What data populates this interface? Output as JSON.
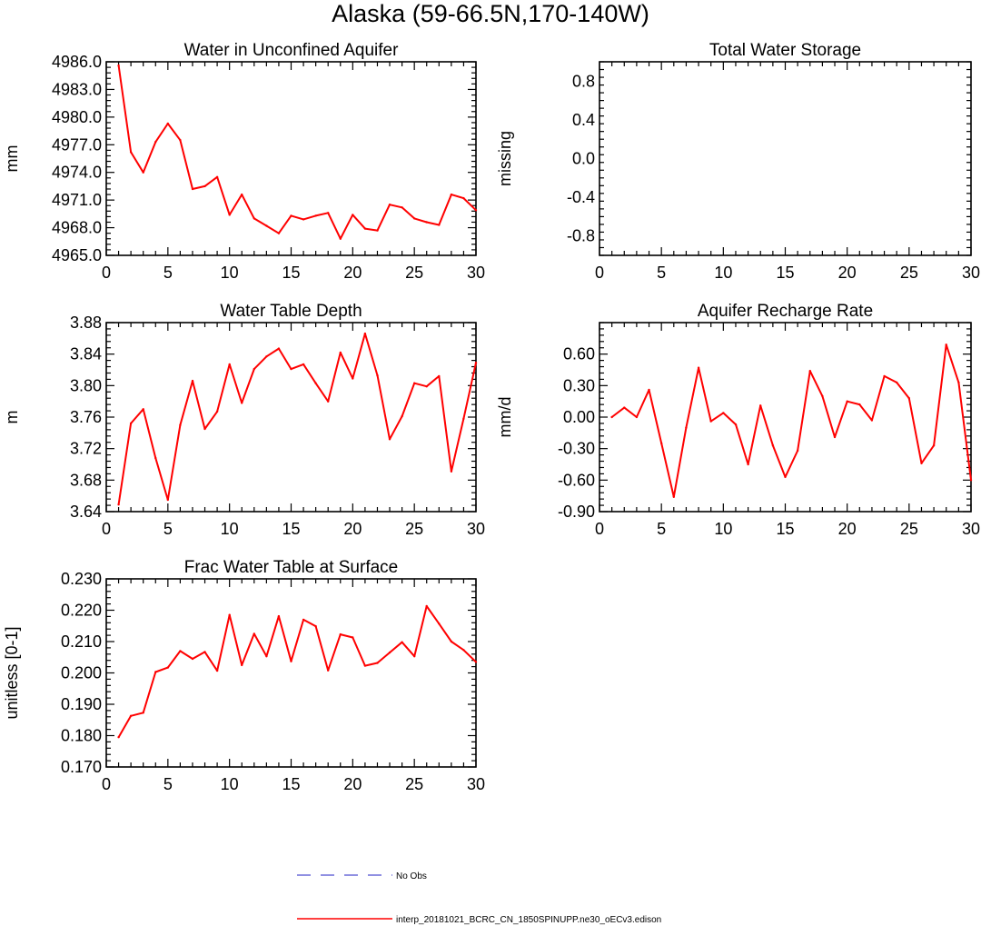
{
  "figure_title": "Alaska (59-66.5N,170-140W)",
  "legend": {
    "entries": [
      {
        "label": "No Obs",
        "color": "#6b6bd8",
        "style": "dashed"
      },
      {
        "label": "interp_20181021_BCRC_CN_1850SPINUPP.ne30_oECv3.edison",
        "color": "#ff0000",
        "style": "solid"
      }
    ]
  },
  "chart_data": [
    {
      "type": "line",
      "title": "Water in Unconfined Aquifer",
      "xlabel": "",
      "ylabel": "mm",
      "xlim": [
        0,
        30
      ],
      "ylim": [
        4965.0,
        4986.0
      ],
      "xticks": [
        "0",
        "5",
        "10",
        "15",
        "20",
        "25",
        "30"
      ],
      "yticks": [
        "4965.0",
        "4968.0",
        "4971.0",
        "4974.0",
        "4977.0",
        "4980.0",
        "4983.0",
        "4986.0"
      ],
      "series": [
        {
          "name": "interp_20181021_BCRC_CN_1850SPINUPP.ne30_oECv3.edison",
          "color": "#ff0000",
          "x": [
            1,
            2,
            3,
            4,
            5,
            6,
            7,
            8,
            9,
            10,
            11,
            12,
            13,
            14,
            15,
            16,
            17,
            18,
            19,
            20,
            21,
            22,
            23,
            24,
            25,
            26,
            27,
            28,
            29,
            30
          ],
          "y": [
            4985.6,
            4976.2,
            4974.0,
            4977.3,
            4979.3,
            4977.5,
            4972.2,
            4972.5,
            4973.5,
            4969.4,
            4971.6,
            4969.0,
            4968.2,
            4967.4,
            4969.3,
            4968.9,
            4969.3,
            4969.6,
            4966.8,
            4969.4,
            4967.9,
            4967.7,
            4970.5,
            4970.2,
            4969.0,
            4968.6,
            4968.3,
            4971.6,
            4971.2,
            4969.9
          ]
        }
      ]
    },
    {
      "type": "line",
      "title": "Total Water Storage",
      "xlabel": "",
      "ylabel": "missing",
      "xlim": [
        0,
        30
      ],
      "ylim": [
        -1.0,
        1.0
      ],
      "xticks": [
        "0",
        "5",
        "10",
        "15",
        "20",
        "25",
        "30"
      ],
      "yticks": [
        "-0.8",
        "-0.4",
        "0.0",
        "0.4",
        "0.8"
      ],
      "series": []
    },
    {
      "type": "line",
      "title": "Water Table Depth",
      "xlabel": "",
      "ylabel": "m",
      "xlim": [
        0,
        30
      ],
      "ylim": [
        3.64,
        3.88
      ],
      "xticks": [
        "0",
        "5",
        "10",
        "15",
        "20",
        "25",
        "30"
      ],
      "yticks": [
        "3.64",
        "3.68",
        "3.72",
        "3.76",
        "3.80",
        "3.84",
        "3.88"
      ],
      "series": [
        {
          "name": "interp_20181021_BCRC_CN_1850SPINUPP.ne30_oECv3.edison",
          "color": "#ff0000",
          "x": [
            1,
            2,
            3,
            4,
            5,
            6,
            7,
            8,
            9,
            10,
            11,
            12,
            13,
            14,
            15,
            16,
            17,
            18,
            19,
            20,
            21,
            22,
            23,
            24,
            25,
            26,
            27,
            28,
            29,
            30
          ],
          "y": [
            3.649,
            3.752,
            3.77,
            3.708,
            3.655,
            3.75,
            3.806,
            3.745,
            3.767,
            3.827,
            3.778,
            3.821,
            3.837,
            3.847,
            3.821,
            3.827,
            3.803,
            3.78,
            3.842,
            3.809,
            3.866,
            3.813,
            3.732,
            3.761,
            3.803,
            3.799,
            3.812,
            3.691,
            3.758,
            3.829
          ]
        }
      ]
    },
    {
      "type": "line",
      "title": "Aquifer Recharge Rate",
      "xlabel": "",
      "ylabel": "mm/d",
      "xlim": [
        0,
        30
      ],
      "ylim": [
        -0.9,
        0.9
      ],
      "xticks": [
        "0",
        "5",
        "10",
        "15",
        "20",
        "25",
        "30"
      ],
      "yticks": [
        "-0.90",
        "-0.60",
        "-0.30",
        "0.00",
        "0.30",
        "0.60"
      ],
      "series": [
        {
          "name": "interp_20181021_BCRC_CN_1850SPINUPP.ne30_oECv3.edison",
          "color": "#ff0000",
          "x": [
            1,
            2,
            3,
            4,
            5,
            6,
            7,
            8,
            9,
            10,
            11,
            12,
            13,
            14,
            15,
            16,
            17,
            18,
            19,
            20,
            21,
            22,
            23,
            24,
            25,
            26,
            27,
            28,
            29,
            30
          ],
          "y": [
            0.0,
            0.09,
            0.0,
            0.26,
            -0.25,
            -0.76,
            -0.1,
            0.47,
            -0.04,
            0.04,
            -0.07,
            -0.45,
            0.11,
            -0.27,
            -0.57,
            -0.32,
            0.44,
            0.2,
            -0.19,
            0.15,
            0.12,
            -0.03,
            0.39,
            0.33,
            0.18,
            -0.44,
            -0.27,
            0.69,
            0.33,
            -0.6
          ]
        }
      ]
    },
    {
      "type": "line",
      "title": "Frac Water Table at Surface",
      "xlabel": "",
      "ylabel": "unitless [0-1]",
      "xlim": [
        0,
        30
      ],
      "ylim": [
        0.17,
        0.23
      ],
      "xticks": [
        "0",
        "5",
        "10",
        "15",
        "20",
        "25",
        "30"
      ],
      "yticks": [
        "0.170",
        "0.180",
        "0.190",
        "0.200",
        "0.210",
        "0.220",
        "0.230"
      ],
      "series": [
        {
          "name": "interp_20181021_BCRC_CN_1850SPINUPP.ne30_oECv3.edison",
          "color": "#ff0000",
          "x": [
            1,
            2,
            3,
            4,
            5,
            6,
            7,
            8,
            9,
            10,
            11,
            12,
            13,
            14,
            15,
            16,
            17,
            18,
            19,
            20,
            21,
            22,
            23,
            24,
            25,
            26,
            27,
            28,
            29,
            30
          ],
          "y": [
            0.1795,
            0.1863,
            0.1873,
            0.2003,
            0.2017,
            0.207,
            0.2045,
            0.2067,
            0.2007,
            0.2185,
            0.2025,
            0.2125,
            0.2053,
            0.2181,
            0.2037,
            0.217,
            0.2149,
            0.2008,
            0.2123,
            0.2113,
            0.2023,
            0.2032,
            0.2065,
            0.2098,
            0.2053,
            0.2213,
            0.2157,
            0.21,
            0.2073,
            0.2035
          ]
        }
      ]
    }
  ]
}
